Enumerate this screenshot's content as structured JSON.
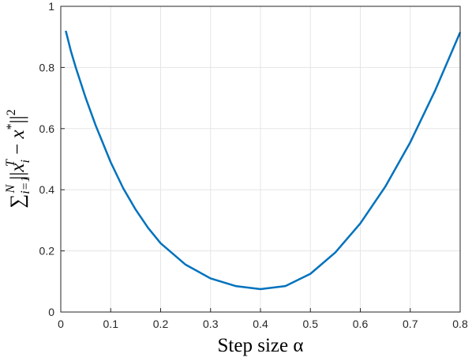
{
  "chart_data": {
    "type": "line",
    "xlabel": "Step size α",
    "ylabel": [
      "∑",
      "i=1",
      "N",
      " ||",
      "x",
      "i",
      "T",
      " − ",
      "x",
      "*",
      "||",
      "2"
    ],
    "x": [
      0.01,
      0.02,
      0.03,
      0.05,
      0.07,
      0.1,
      0.125,
      0.15,
      0.175,
      0.2,
      0.25,
      0.3,
      0.35,
      0.4,
      0.45,
      0.5,
      0.55,
      0.6,
      0.65,
      0.7,
      0.75,
      0.8
    ],
    "series": [
      {
        "color": "#0072bd",
        "values": [
          0.92,
          0.855,
          0.8,
          0.7,
          0.61,
          0.49,
          0.405,
          0.335,
          0.275,
          0.225,
          0.155,
          0.11,
          0.085,
          0.075,
          0.085,
          0.125,
          0.195,
          0.29,
          0.41,
          0.555,
          0.725,
          0.915
        ]
      }
    ],
    "xlim": [
      0,
      0.8
    ],
    "xticks": [
      0,
      0.1,
      0.2,
      0.3,
      0.4,
      0.5,
      0.6,
      0.7,
      0.8
    ],
    "ylim": [
      0,
      1
    ],
    "yticks": [
      0,
      0.2,
      0.4,
      0.6,
      0.8,
      1
    ],
    "grid": true
  }
}
